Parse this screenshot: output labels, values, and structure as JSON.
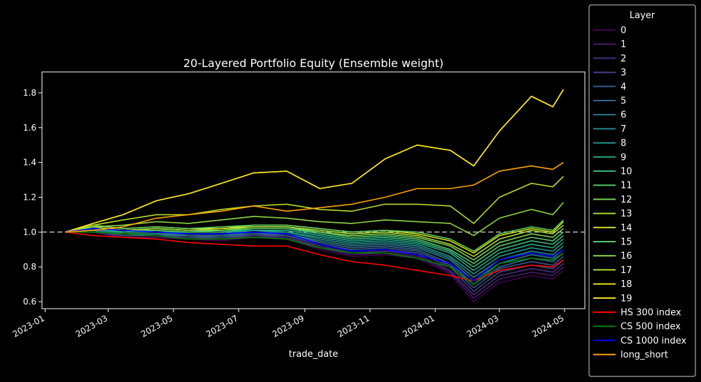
{
  "chart_data": {
    "type": "line",
    "title": "20-Layered Portfolio Equity (Ensemble weight)",
    "xlabel": "trade_date",
    "ylabel": "",
    "x_ticks": [
      "2023-01",
      "2023-03",
      "2023-05",
      "2023-07",
      "2023-09",
      "2023-11",
      "2024-01",
      "2024-03",
      "2024-05"
    ],
    "y_ticks": [
      "0.6",
      "0.8",
      "1.0",
      "1.2",
      "1.4",
      "1.6",
      "1.8"
    ],
    "xlim": [
      "2022-12-29",
      "2024-05-20"
    ],
    "ylim": [
      0.56,
      1.92
    ],
    "reference_line": 1.0,
    "grid": false,
    "legend_title": "Layer",
    "legend_position": "outside-right",
    "x": [
      "2023-01-20",
      "2023-02-15",
      "2023-03-15",
      "2023-04-15",
      "2023-05-15",
      "2023-06-15",
      "2023-07-15",
      "2023-08-15",
      "2023-09-15",
      "2023-10-15",
      "2023-11-15",
      "2023-12-15",
      "2024-01-15",
      "2024-02-06",
      "2024-03-01",
      "2024-03-31",
      "2024-04-20",
      "2024-04-30"
    ],
    "series": [
      {
        "name": "0",
        "color": "#440154",
        "values": [
          1.0,
          1.0,
          0.97,
          0.97,
          0.96,
          0.95,
          0.97,
          0.96,
          0.9,
          0.86,
          0.87,
          0.85,
          0.76,
          0.6,
          0.71,
          0.75,
          0.73,
          0.78
        ]
      },
      {
        "name": "1",
        "color": "#481a6c",
        "values": [
          1.0,
          1.0,
          0.97,
          0.97,
          0.96,
          0.96,
          0.97,
          0.97,
          0.91,
          0.87,
          0.88,
          0.86,
          0.77,
          0.62,
          0.73,
          0.77,
          0.75,
          0.8
        ]
      },
      {
        "name": "2",
        "color": "#472f7d",
        "values": [
          1.0,
          1.0,
          0.98,
          0.98,
          0.97,
          0.96,
          0.98,
          0.97,
          0.92,
          0.88,
          0.89,
          0.87,
          0.78,
          0.64,
          0.75,
          0.79,
          0.77,
          0.82
        ]
      },
      {
        "name": "3",
        "color": "#414487",
        "values": [
          1.0,
          1.01,
          0.98,
          0.98,
          0.97,
          0.97,
          0.98,
          0.98,
          0.93,
          0.89,
          0.9,
          0.88,
          0.8,
          0.66,
          0.77,
          0.81,
          0.79,
          0.84
        ]
      },
      {
        "name": "4",
        "color": "#39568c",
        "values": [
          1.0,
          1.01,
          0.98,
          0.98,
          0.98,
          0.97,
          0.99,
          0.98,
          0.93,
          0.9,
          0.91,
          0.89,
          0.81,
          0.68,
          0.79,
          0.83,
          0.81,
          0.86
        ]
      },
      {
        "name": "5",
        "color": "#31688e",
        "values": [
          1.0,
          1.01,
          0.99,
          0.99,
          0.98,
          0.98,
          0.99,
          0.99,
          0.94,
          0.91,
          0.92,
          0.9,
          0.82,
          0.7,
          0.8,
          0.85,
          0.83,
          0.88
        ]
      },
      {
        "name": "6",
        "color": "#2a788e",
        "values": [
          1.0,
          1.01,
          0.99,
          0.99,
          0.98,
          0.98,
          1.0,
          0.99,
          0.95,
          0.92,
          0.93,
          0.91,
          0.84,
          0.72,
          0.82,
          0.87,
          0.85,
          0.9
        ]
      },
      {
        "name": "7",
        "color": "#23888e",
        "values": [
          1.0,
          1.02,
          0.99,
          0.99,
          0.99,
          0.99,
          1.0,
          1.0,
          0.96,
          0.93,
          0.94,
          0.92,
          0.85,
          0.74,
          0.84,
          0.89,
          0.87,
          0.92
        ]
      },
      {
        "name": "8",
        "color": "#1f988b",
        "values": [
          1.0,
          1.02,
          1.0,
          1.0,
          0.99,
          0.99,
          1.01,
          1.0,
          0.97,
          0.94,
          0.95,
          0.93,
          0.86,
          0.76,
          0.86,
          0.91,
          0.89,
          0.94
        ]
      },
      {
        "name": "9",
        "color": "#22a884",
        "values": [
          1.0,
          1.02,
          1.0,
          1.0,
          1.0,
          1.0,
          1.01,
          1.01,
          0.98,
          0.95,
          0.96,
          0.94,
          0.88,
          0.78,
          0.88,
          0.93,
          0.91,
          0.96
        ]
      },
      {
        "name": "10",
        "color": "#35b779",
        "values": [
          1.0,
          1.02,
          1.0,
          1.01,
          1.0,
          1.0,
          1.02,
          1.02,
          0.99,
          0.96,
          0.97,
          0.95,
          0.89,
          0.8,
          0.9,
          0.95,
          0.93,
          0.98
        ]
      },
      {
        "name": "11",
        "color": "#54c568",
        "values": [
          1.0,
          1.03,
          1.01,
          1.01,
          1.0,
          1.01,
          1.02,
          1.02,
          1.0,
          0.97,
          0.98,
          0.96,
          0.9,
          0.82,
          0.92,
          0.97,
          0.95,
          1.0
        ]
      },
      {
        "name": "12",
        "color": "#7ad151",
        "values": [
          1.0,
          1.03,
          1.01,
          1.02,
          1.01,
          1.01,
          1.03,
          1.03,
          1.0,
          0.98,
          0.99,
          0.97,
          0.92,
          0.84,
          0.94,
          0.99,
          0.97,
          1.02
        ]
      },
      {
        "name": "13",
        "color": "#a5db36",
        "values": [
          1.0,
          1.03,
          1.01,
          1.02,
          1.01,
          1.02,
          1.03,
          1.03,
          1.01,
          0.99,
          1.0,
          0.98,
          0.93,
          0.86,
          0.96,
          1.01,
          0.99,
          1.04
        ]
      },
      {
        "name": "14",
        "color": "#d2e21b",
        "values": [
          1.0,
          1.04,
          1.02,
          1.03,
          1.02,
          1.02,
          1.04,
          1.04,
          1.02,
          1.0,
          1.01,
          0.99,
          0.95,
          0.88,
          0.98,
          1.02,
          1.0,
          1.06
        ]
      },
      {
        "name": "15",
        "color": "#5ac864",
        "values": [
          1.0,
          1.04,
          1.02,
          1.03,
          1.02,
          1.03,
          1.04,
          1.04,
          1.02,
          1.0,
          1.01,
          1.0,
          0.96,
          0.89,
          0.99,
          1.03,
          1.01,
          1.07
        ]
      },
      {
        "name": "16",
        "color": "#8fd744",
        "values": [
          1.0,
          1.03,
          1.04,
          1.06,
          1.05,
          1.07,
          1.09,
          1.08,
          1.06,
          1.05,
          1.07,
          1.06,
          1.05,
          0.98,
          1.08,
          1.13,
          1.1,
          1.17
        ]
      },
      {
        "name": "17",
        "color": "#b5de2b",
        "values": [
          1.0,
          1.04,
          1.07,
          1.1,
          1.1,
          1.13,
          1.15,
          1.16,
          1.13,
          1.12,
          1.16,
          1.16,
          1.15,
          1.05,
          1.2,
          1.28,
          1.26,
          1.32
        ]
      },
      {
        "name": "18",
        "color": "#e2e418",
        "values": [
          1.0,
          1.05,
          1.1,
          1.18,
          1.22,
          1.28,
          1.34,
          1.35,
          1.25,
          1.28,
          1.42,
          1.5,
          1.47,
          1.38,
          1.58,
          1.78,
          1.72,
          1.82
        ]
      },
      {
        "name": "19",
        "color": "#fde725",
        "values": [
          1.0,
          1.05,
          1.1,
          1.18,
          1.22,
          1.28,
          1.34,
          1.35,
          1.25,
          1.28,
          1.42,
          1.5,
          1.47,
          1.38,
          1.58,
          1.78,
          1.72,
          1.82
        ]
      },
      {
        "name": "HS 300 index",
        "color": "#ff0000",
        "values": [
          1.0,
          0.98,
          0.97,
          0.96,
          0.94,
          0.93,
          0.92,
          0.92,
          0.87,
          0.83,
          0.81,
          0.78,
          0.75,
          0.72,
          0.78,
          0.81,
          0.8,
          0.84
        ]
      },
      {
        "name": "CS 500 index",
        "color": "#008000",
        "values": [
          1.0,
          1.0,
          0.99,
          0.98,
          0.96,
          0.96,
          0.97,
          0.96,
          0.91,
          0.88,
          0.88,
          0.85,
          0.8,
          0.7,
          0.82,
          0.85,
          0.84,
          0.88
        ]
      },
      {
        "name": "CS 1000 index",
        "color": "#0000ff",
        "values": [
          1.0,
          1.02,
          1.01,
          1.0,
          0.99,
          0.99,
          1.0,
          0.99,
          0.93,
          0.89,
          0.9,
          0.87,
          0.82,
          0.72,
          0.84,
          0.88,
          0.86,
          0.9
        ]
      },
      {
        "name": "long_short",
        "color": "#ffa500",
        "values": [
          1.0,
          1.01,
          1.03,
          1.08,
          1.1,
          1.12,
          1.15,
          1.12,
          1.14,
          1.16,
          1.2,
          1.25,
          1.25,
          1.27,
          1.35,
          1.38,
          1.36,
          1.4
        ]
      }
    ]
  }
}
